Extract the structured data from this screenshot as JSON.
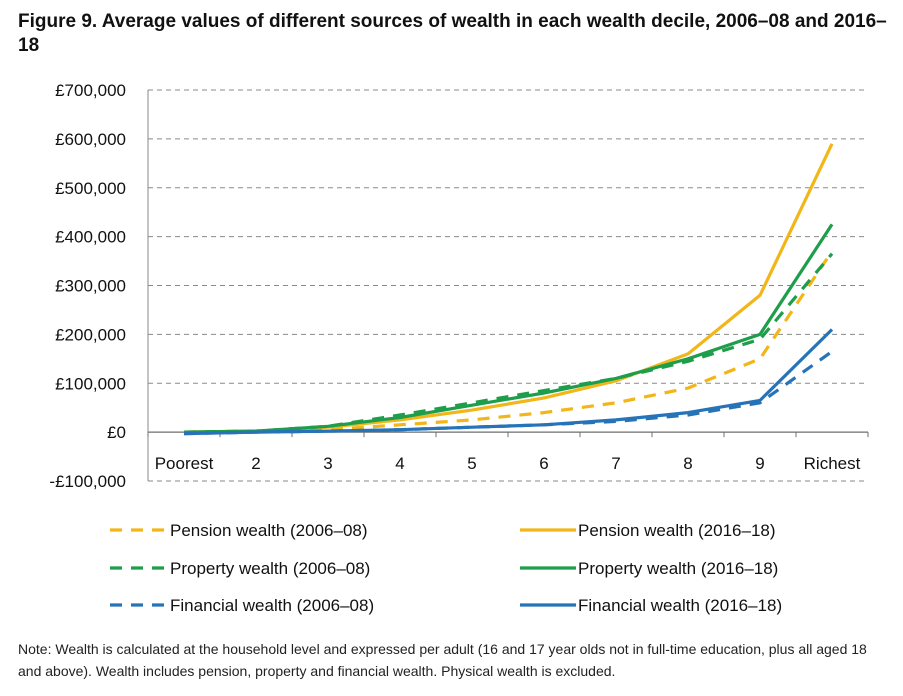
{
  "figure": {
    "title": "Figure 9. Average values of different sources of wealth in each wealth decile, 2006–08 and 2016–18",
    "note": "Note: Wealth is calculated at the household level and expressed per adult (16 and 17 year olds not in full-time education, plus all aged 18 and above). Wealth includes pension, property and financial wealth. Physical wealth is excluded."
  },
  "chart_data": {
    "type": "line",
    "title": "Figure 9. Average values of different sources of wealth in each wealth decile, 2006–08 and 2016–18",
    "xlabel": "",
    "ylabel": "",
    "categories": [
      "Poorest",
      "2",
      "3",
      "4",
      "5",
      "6",
      "7",
      "8",
      "9",
      "Richest"
    ],
    "ylim": [
      -100000,
      700000
    ],
    "yticks": [
      -100000,
      0,
      100000,
      200000,
      300000,
      400000,
      500000,
      600000,
      700000
    ],
    "ytick_labels": [
      "-£100,000",
      "£0",
      "£100,000",
      "£200,000",
      "£300,000",
      "£400,000",
      "£500,000",
      "£600,000",
      "£700,000"
    ],
    "grid": "horizontal dashed",
    "legend_position": "bottom",
    "series": [
      {
        "name": "Pension wealth (2006–08)",
        "color": "#F2B619",
        "dashed": true,
        "values": [
          0,
          1000,
          5000,
          15000,
          25000,
          40000,
          60000,
          90000,
          150000,
          370000
        ]
      },
      {
        "name": "Pension wealth (2016–18)",
        "color": "#F2B619",
        "dashed": false,
        "values": [
          0,
          2000,
          10000,
          25000,
          45000,
          70000,
          105000,
          160000,
          280000,
          590000
        ]
      },
      {
        "name": "Property wealth (2006–08)",
        "color": "#1E9E4B",
        "dashed": true,
        "values": [
          0,
          2000,
          12000,
          35000,
          60000,
          85000,
          110000,
          145000,
          190000,
          365000
        ]
      },
      {
        "name": "Property wealth (2016–18)",
        "color": "#1E9E4B",
        "dashed": false,
        "values": [
          0,
          2000,
          12000,
          30000,
          55000,
          80000,
          110000,
          150000,
          200000,
          425000
        ]
      },
      {
        "name": "Financial wealth (2006–08)",
        "color": "#2673B8",
        "dashed": true,
        "values": [
          -3000,
          0,
          2000,
          5000,
          10000,
          15000,
          22000,
          35000,
          60000,
          165000
        ]
      },
      {
        "name": "Financial wealth (2016–18)",
        "color": "#2673B8",
        "dashed": false,
        "values": [
          -3000,
          0,
          2000,
          5000,
          10000,
          15000,
          25000,
          40000,
          65000,
          210000
        ]
      }
    ]
  }
}
